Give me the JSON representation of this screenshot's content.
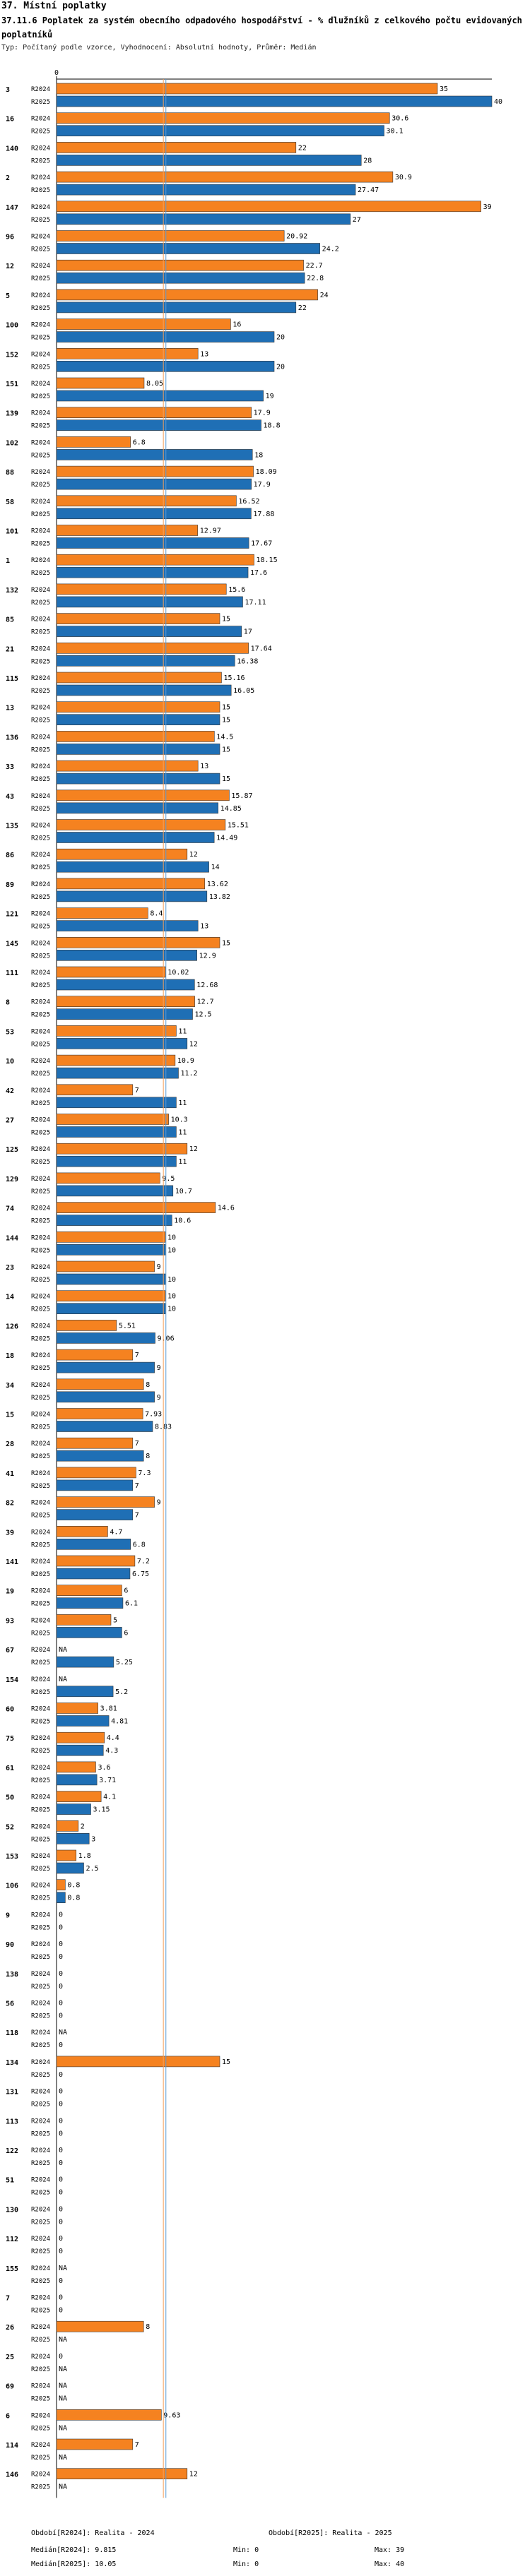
{
  "header": {
    "section": "37. Místní poplatky",
    "title": "37.11.6 Poplatek za systém obecního odpadového hospodářství - % dlužníků z celkového počtu evidovaných poplatníků",
    "subtitle": "Typ: Počítaný podle vzorce, Vyhodnocení: Absolutní hodnoty, Průměr: Medián"
  },
  "chart_data": {
    "type": "bar",
    "orientation": "horizontal",
    "axis_zero_label": "0",
    "xlim": [
      0,
      40
    ],
    "series_names": [
      "R2024",
      "R2025"
    ],
    "colors": {
      "R2024": "#f58220",
      "R2025": "#1f6fb5",
      "median_2024": "#f5a05a",
      "median_2025": "#5a9bd5"
    },
    "missing_label": "NA",
    "medians": {
      "R2024": 9.815,
      "R2025": 10.05
    },
    "categories": [
      "3",
      "16",
      "140",
      "2",
      "147",
      "96",
      "12",
      "5",
      "100",
      "152",
      "151",
      "139",
      "102",
      "88",
      "58",
      "101",
      "1",
      "132",
      "85",
      "21",
      "115",
      "13",
      "136",
      "33",
      "43",
      "135",
      "86",
      "89",
      "121",
      "145",
      "111",
      "8",
      "53",
      "10",
      "42",
      "27",
      "125",
      "129",
      "74",
      "144",
      "23",
      "14",
      "126",
      "18",
      "34",
      "15",
      "28",
      "41",
      "82",
      "39",
      "141",
      "19",
      "93",
      "67",
      "154",
      "60",
      "75",
      "61",
      "50",
      "52",
      "153",
      "106",
      "9",
      "90",
      "138",
      "56",
      "118",
      "134",
      "131",
      "113",
      "122",
      "51",
      "130",
      "112",
      "155",
      "7",
      "26",
      "25",
      "69",
      "6",
      "114",
      "146"
    ],
    "series": [
      {
        "name": "R2024",
        "values": [
          35,
          30.6,
          22,
          30.9,
          39,
          20.92,
          22.7,
          24,
          16,
          13,
          8.05,
          17.9,
          6.8,
          18.09,
          16.52,
          12.97,
          18.15,
          15.6,
          15,
          17.64,
          15.16,
          15,
          14.5,
          13,
          15.87,
          15.51,
          12,
          13.62,
          8.4,
          15,
          10.02,
          12.7,
          11,
          10.9,
          7,
          10.3,
          12,
          9.5,
          14.6,
          10,
          9,
          10,
          5.51,
          7,
          8,
          7.93,
          7,
          7.3,
          9,
          4.7,
          7.2,
          6,
          5,
          null,
          null,
          3.81,
          4.4,
          3.6,
          4.1,
          2,
          1.8,
          0.8,
          0,
          0,
          0,
          0,
          null,
          15,
          0,
          0,
          0,
          0,
          0,
          0,
          null,
          0,
          8,
          0,
          null,
          9.63,
          7,
          12
        ]
      },
      {
        "name": "R2025",
        "values": [
          40,
          30.1,
          28,
          27.47,
          27,
          24.2,
          22.8,
          22,
          20,
          20,
          19,
          18.8,
          18,
          17.9,
          17.88,
          17.67,
          17.6,
          17.11,
          17,
          16.38,
          16.05,
          15,
          15,
          15,
          14.85,
          14.49,
          14,
          13.82,
          13,
          12.9,
          12.68,
          12.5,
          12,
          11.2,
          11,
          11,
          11,
          10.7,
          10.6,
          10,
          10,
          10,
          9.06,
          9,
          9,
          8.83,
          8,
          7,
          7,
          6.8,
          6.75,
          6.1,
          6,
          5.25,
          5.2,
          4.81,
          4.3,
          3.71,
          3.15,
          3,
          2.5,
          0.8,
          0,
          0,
          0,
          0,
          0,
          0,
          0,
          0,
          0,
          0,
          0,
          0,
          0,
          0,
          null,
          null,
          null,
          null,
          null,
          null
        ]
      }
    ]
  },
  "legend": {
    "col1": {
      "line1": "Období[R2024]: Realita - 2024",
      "line2": "Medián[R2024]: 9.815",
      "line3": "Medián[R2025]: 10.05"
    },
    "col2": {
      "line2": "Min: 0",
      "line3": "Min: 0"
    },
    "col3": {
      "line1": "Období[R2025]: Realita - 2025",
      "line2": "Max: 39",
      "line3": "Max: 40"
    }
  }
}
